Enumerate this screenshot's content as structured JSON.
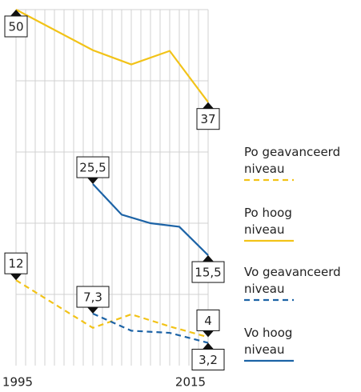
{
  "chart_data": {
    "type": "line",
    "xlim": [
      1995,
      2015
    ],
    "xticks": [
      1995,
      2015
    ],
    "ylim": [
      0,
      50
    ],
    "yticks": [
      10,
      20,
      30,
      40,
      50
    ],
    "grid": true,
    "series": [
      {
        "name": "Po geavanceerd niveau",
        "color": "#f2c318",
        "dashed": true,
        "x": [
          1995,
          2003,
          2007,
          2011,
          2015
        ],
        "values": [
          12,
          5.3,
          7.2,
          5.5,
          4
        ],
        "value_labels": [
          "12",
          null,
          null,
          null,
          "4"
        ]
      },
      {
        "name": "Po hoog niveau",
        "color": "#f2c318",
        "dashed": false,
        "x": [
          1995,
          2003,
          2007,
          2011,
          2015
        ],
        "values": [
          50,
          44.3,
          42.3,
          44.2,
          37
        ],
        "value_labels": [
          "50",
          null,
          null,
          null,
          "37"
        ]
      },
      {
        "name": "Vo geavanceerd niveau",
        "color": "#1c63a6",
        "dashed": true,
        "x": [
          2003,
          2007,
          2011,
          2015
        ],
        "values": [
          7.3,
          4.9,
          4.6,
          3.2
        ],
        "value_labels": [
          "7,3",
          null,
          null,
          "3,2"
        ]
      },
      {
        "name": "Vo hoog niveau",
        "color": "#1c63a6",
        "dashed": false,
        "x": [
          2003,
          2006,
          2009,
          2012,
          2015
        ],
        "values": [
          25.5,
          21.2,
          20,
          19.5,
          15.5
        ],
        "value_labels": [
          "25,5",
          null,
          null,
          null,
          "15,5"
        ]
      }
    ]
  }
}
